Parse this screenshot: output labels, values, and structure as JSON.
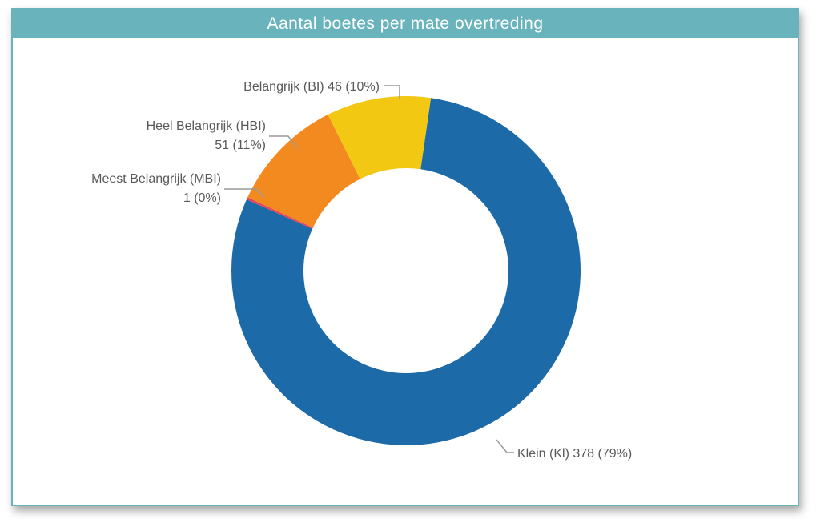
{
  "chart_data": {
    "type": "donut",
    "title": "Aantal boetes per mate overtreding",
    "series": [
      {
        "slices": [
          {
            "name": "Klein (Kl)",
            "value": 378,
            "percent_label": "79%",
            "color": "#1c6aa8",
            "label_lines": [
              "Klein (Kl) 378 (79%)"
            ]
          },
          {
            "name": "Meest Belangrijk (MBI)",
            "value": 1,
            "percent_label": "0%",
            "color": "#e8445a",
            "label_lines": [
              "Meest Belangrijk (MBI)",
              "1 (0%)"
            ]
          },
          {
            "name": "Heel Belangrijk (HBI)",
            "value": 51,
            "percent_label": "11%",
            "color": "#f28a20",
            "label_lines": [
              "Heel Belangrijk (HBI)",
              "51 (11%)"
            ]
          },
          {
            "name": "Belangrijk (BI)",
            "value": 46,
            "percent_label": "10%",
            "color": "#f2c813",
            "label_lines": [
              "Belangrijk (BI) 46 (10%)"
            ]
          }
        ]
      }
    ],
    "legend": "none",
    "start": "top",
    "direction": "clockwise"
  }
}
